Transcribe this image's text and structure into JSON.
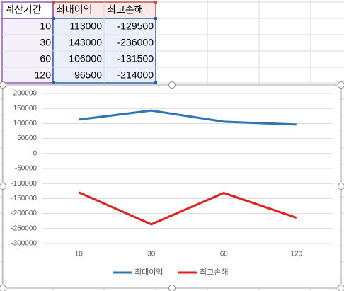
{
  "table": {
    "header": [
      "계산기간",
      "최대이익",
      "최고손해"
    ],
    "rows": [
      [
        10,
        113000,
        -129500
      ],
      [
        30,
        143000,
        -236000
      ],
      [
        60,
        106000,
        -131500
      ],
      [
        120,
        96500,
        -214000
      ]
    ]
  },
  "chart_data": {
    "type": "line",
    "categories": [
      "10",
      "30",
      "60",
      "120"
    ],
    "series": [
      {
        "name": "최대이익",
        "color": "#2e75b6",
        "values": [
          113000,
          143000,
          106000,
          96500
        ]
      },
      {
        "name": "최고손해",
        "color": "#e0201c",
        "values": [
          -129500,
          -236000,
          -131500,
          -214000
        ]
      }
    ],
    "ylim": [
      -300000,
      200000
    ],
    "yticks": [
      -300000,
      -250000,
      -200000,
      -150000,
      -100000,
      -50000,
      0,
      50000,
      100000,
      150000,
      200000
    ],
    "grid": true,
    "legend": "bottom"
  }
}
